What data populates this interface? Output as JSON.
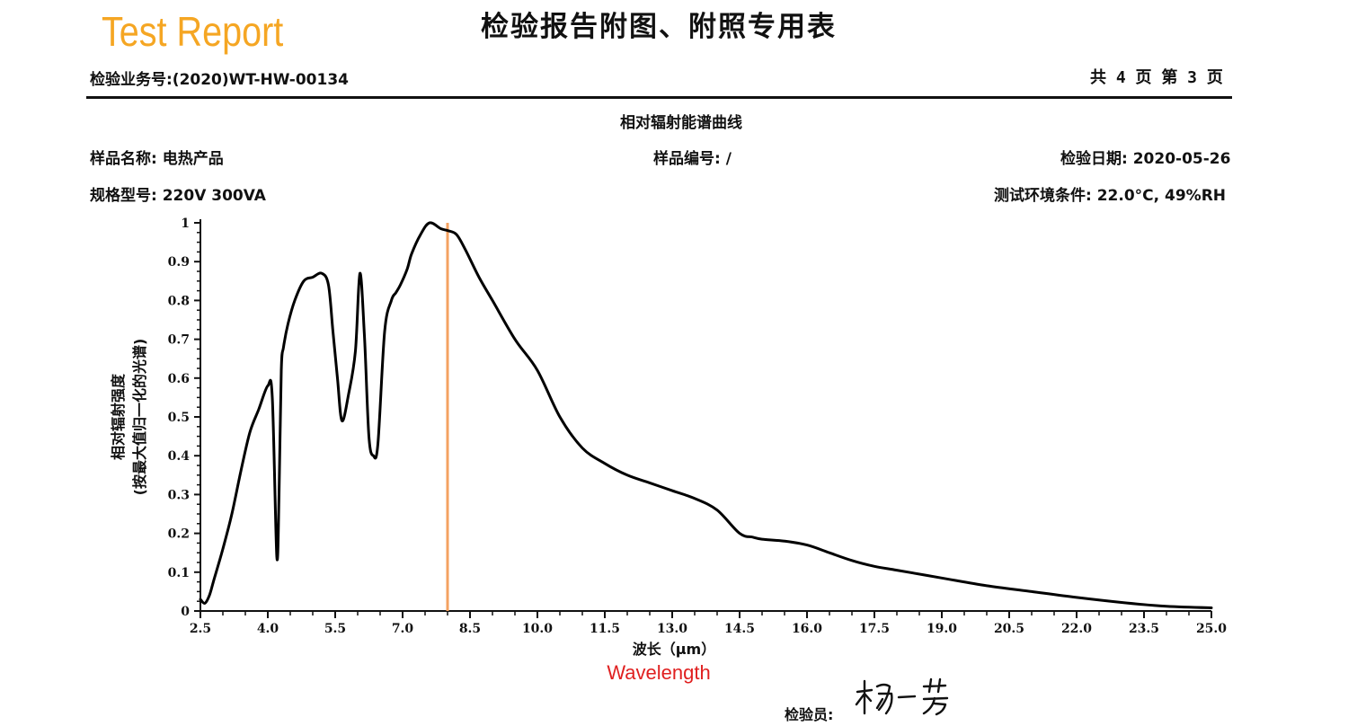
{
  "header": {
    "brand_label": "Test Report",
    "document_title": "检验报告附图、附照专用表",
    "report_number": "检验业务号:(2020)WT-HW-00134",
    "page_info": "共 4 页 第 3 页"
  },
  "sample_info": {
    "sample_name": "样品名称: 电热产品",
    "sample_number": "样品编号: /",
    "test_date": "检验日期: 2020-05-26",
    "specification": "规格型号: 220V 300VA",
    "environment": "测试环境条件: 22.0°C, 49%RH"
  },
  "footer": {
    "inspector_label": "检验员:",
    "signature_text": "杨一芳"
  },
  "colors": {
    "curve": "#000000",
    "peak_marker": "#f4a261",
    "brand": "#f5a623",
    "annotation": "#e02020"
  },
  "chart_data": {
    "type": "line",
    "title": "相对辐射能谱曲线",
    "xlabel": "波长（μm）",
    "xlabel_annotation": "Wavelength",
    "ylabel_line1": "相对辐射强度",
    "ylabel_line2": "(按最大值归一化的光谱)",
    "xlim": [
      2.5,
      25.0
    ],
    "ylim": [
      0,
      1
    ],
    "xticks": [
      "2.5",
      "4.0",
      "5.5",
      "7.0",
      "8.5",
      "10.0",
      "11.5",
      "13.0",
      "14.5",
      "16.0",
      "17.5",
      "19.0",
      "20.5",
      "22.0",
      "23.5",
      "25.0"
    ],
    "yticks": [
      "0",
      "0.1",
      "0.2",
      "0.3",
      "0.4",
      "0.5",
      "0.6",
      "0.7",
      "0.8",
      "0.9",
      "1"
    ],
    "peak_marker_x": 8.0,
    "series": [
      {
        "x": [
          2.5,
          2.6,
          2.7,
          2.8,
          3.0,
          3.2,
          3.4,
          3.6,
          3.8,
          4.0,
          4.1,
          4.2,
          4.25,
          4.3,
          4.35,
          4.45,
          4.6,
          4.8,
          5.0,
          5.2,
          5.35,
          5.45,
          5.55,
          5.65,
          5.8,
          5.95,
          6.05,
          6.15,
          6.25,
          6.35,
          6.45,
          6.6,
          6.75,
          6.85,
          6.95,
          7.1,
          7.2,
          7.4,
          7.6,
          7.85,
          8.0,
          8.2,
          8.4,
          8.7,
          9.0,
          9.5,
          10.0,
          10.5,
          11.0,
          11.5,
          12.0,
          12.5,
          13.0,
          13.5,
          14.0,
          14.5,
          14.8,
          15.0,
          15.5,
          16.0,
          16.5,
          17.0,
          17.5,
          18.0,
          19.0,
          20.0,
          21.0,
          22.0,
          23.0,
          24.0,
          25.0
        ],
        "y": [
          0.03,
          0.02,
          0.04,
          0.08,
          0.16,
          0.25,
          0.36,
          0.46,
          0.52,
          0.58,
          0.55,
          0.14,
          0.3,
          0.62,
          0.68,
          0.74,
          0.8,
          0.85,
          0.86,
          0.87,
          0.84,
          0.72,
          0.6,
          0.49,
          0.56,
          0.67,
          0.87,
          0.71,
          0.45,
          0.4,
          0.43,
          0.72,
          0.8,
          0.82,
          0.84,
          0.88,
          0.92,
          0.97,
          1.0,
          0.985,
          0.98,
          0.97,
          0.93,
          0.86,
          0.8,
          0.7,
          0.62,
          0.5,
          0.42,
          0.38,
          0.35,
          0.33,
          0.31,
          0.29,
          0.26,
          0.2,
          0.19,
          0.185,
          0.18,
          0.17,
          0.15,
          0.13,
          0.115,
          0.105,
          0.085,
          0.065,
          0.05,
          0.035,
          0.022,
          0.012,
          0.008
        ]
      }
    ]
  }
}
